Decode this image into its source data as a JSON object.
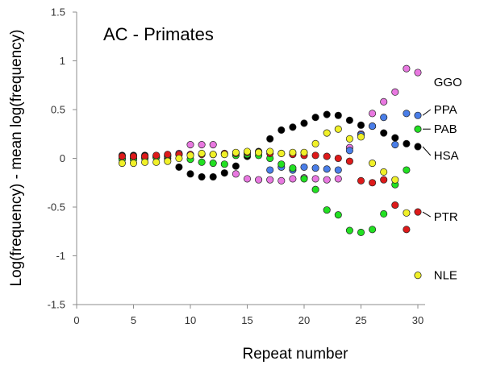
{
  "chart_data": {
    "type": "scatter",
    "title": "AC - Primates",
    "xlabel": "Repeat number",
    "ylabel": "Log(frequency) - mean log(frequency)",
    "xlim": [
      0,
      30
    ],
    "ylim": [
      -1.5,
      1.5
    ],
    "x_ticks": [
      "0",
      "5",
      "10",
      "15",
      "20",
      "25",
      "30"
    ],
    "y_ticks": [
      "1.5",
      "1",
      "0.5",
      "0",
      "-0.5",
      "-1",
      "-1.5"
    ],
    "grid": false,
    "series": [
      {
        "name": "HSA",
        "color": "#000000",
        "points": [
          [
            4,
            0.03
          ],
          [
            5,
            0.03
          ],
          [
            6,
            0.03
          ],
          [
            7,
            0.02
          ],
          [
            8,
            0.0
          ],
          [
            9,
            -0.09
          ],
          [
            10,
            -0.16
          ],
          [
            11,
            -0.19
          ],
          [
            12,
            -0.19
          ],
          [
            13,
            -0.15
          ],
          [
            14,
            -0.08
          ],
          [
            15,
            0.02
          ],
          [
            16,
            0.07
          ],
          [
            17,
            0.2
          ],
          [
            18,
            0.29
          ],
          [
            19,
            0.32
          ],
          [
            20,
            0.36
          ],
          [
            21,
            0.42
          ],
          [
            22,
            0.45
          ],
          [
            23,
            0.44
          ],
          [
            24,
            0.39
          ],
          [
            25,
            0.34
          ],
          [
            26,
            0.33
          ],
          [
            27,
            0.26
          ],
          [
            28,
            0.21
          ],
          [
            29,
            0.15
          ],
          [
            30,
            0.12
          ]
        ]
      },
      {
        "name": "GGO",
        "color": "#e878e0",
        "points": [
          [
            4,
            0.0
          ],
          [
            5,
            0.0
          ],
          [
            6,
            0.01
          ],
          [
            7,
            0.01
          ],
          [
            8,
            0.02
          ],
          [
            9,
            0.05
          ],
          [
            10,
            0.14
          ],
          [
            11,
            0.14
          ],
          [
            12,
            0.14
          ],
          [
            14,
            -0.16
          ],
          [
            15,
            -0.21
          ],
          [
            16,
            -0.22
          ],
          [
            17,
            -0.22
          ],
          [
            18,
            -0.23
          ],
          [
            19,
            -0.21
          ],
          [
            20,
            -0.2
          ],
          [
            21,
            -0.21
          ],
          [
            22,
            -0.22
          ],
          [
            23,
            -0.21
          ],
          [
            24,
            0.11
          ],
          [
            25,
            0.25
          ],
          [
            26,
            0.46
          ],
          [
            27,
            0.58
          ],
          [
            28,
            0.68
          ],
          [
            29,
            0.92
          ],
          [
            30,
            0.88
          ]
        ]
      },
      {
        "name": "PPA",
        "color": "#4a7ee8",
        "points": [
          [
            17,
            -0.12
          ],
          [
            18,
            -0.09
          ],
          [
            19,
            -0.12
          ],
          [
            20,
            -0.09
          ],
          [
            21,
            -0.1
          ],
          [
            22,
            -0.11
          ],
          [
            23,
            -0.12
          ],
          [
            24,
            0.08
          ],
          [
            25,
            0.24
          ],
          [
            26,
            0.33
          ],
          [
            27,
            0.42
          ],
          [
            28,
            0.14
          ],
          [
            29,
            0.46
          ],
          [
            30,
            0.44
          ]
        ]
      },
      {
        "name": "PAB",
        "color": "#22e022",
        "points": [
          [
            4,
            -0.01
          ],
          [
            5,
            -0.01
          ],
          [
            6,
            0.0
          ],
          [
            7,
            0.01
          ],
          [
            8,
            0.03
          ],
          [
            9,
            0.04
          ],
          [
            10,
            -0.01
          ],
          [
            11,
            -0.04
          ],
          [
            12,
            -0.05
          ],
          [
            13,
            -0.06
          ],
          [
            14,
            0.03
          ],
          [
            15,
            0.04
          ],
          [
            16,
            0.03
          ],
          [
            17,
            0.0
          ],
          [
            18,
            -0.06
          ],
          [
            19,
            -0.1
          ],
          [
            20,
            -0.21
          ],
          [
            21,
            -0.32
          ],
          [
            22,
            -0.53
          ],
          [
            23,
            -0.58
          ],
          [
            24,
            -0.74
          ],
          [
            25,
            -0.76
          ],
          [
            26,
            -0.73
          ],
          [
            27,
            -0.57
          ],
          [
            28,
            -0.27
          ],
          [
            29,
            -0.12
          ],
          [
            30,
            0.3
          ]
        ]
      },
      {
        "name": "PTR",
        "color": "#dd1a1a",
        "points": [
          [
            4,
            0.02
          ],
          [
            5,
            0.02
          ],
          [
            6,
            0.02
          ],
          [
            7,
            0.03
          ],
          [
            8,
            0.04
          ],
          [
            9,
            0.04
          ],
          [
            10,
            0.04
          ],
          [
            11,
            0.04
          ],
          [
            12,
            0.04
          ],
          [
            13,
            0.05
          ],
          [
            14,
            0.05
          ],
          [
            15,
            0.06
          ],
          [
            16,
            0.06
          ],
          [
            17,
            0.05
          ],
          [
            18,
            0.05
          ],
          [
            19,
            0.04
          ],
          [
            20,
            0.03
          ],
          [
            21,
            0.03
          ],
          [
            22,
            0.02
          ],
          [
            23,
            0.0
          ],
          [
            24,
            -0.03
          ],
          [
            25,
            -0.23
          ],
          [
            26,
            -0.25
          ],
          [
            27,
            -0.22
          ],
          [
            28,
            -0.48
          ],
          [
            29,
            -0.73
          ],
          [
            30,
            -0.55
          ]
        ]
      },
      {
        "name": "NLE",
        "color": "#f0f028",
        "points": [
          [
            4,
            -0.05
          ],
          [
            5,
            -0.05
          ],
          [
            6,
            -0.04
          ],
          [
            7,
            -0.04
          ],
          [
            8,
            -0.03
          ],
          [
            9,
            0.0
          ],
          [
            10,
            0.03
          ],
          [
            11,
            0.05
          ],
          [
            12,
            0.04
          ],
          [
            13,
            0.04
          ],
          [
            14,
            0.06
          ],
          [
            15,
            0.07
          ],
          [
            16,
            0.06
          ],
          [
            17,
            0.07
          ],
          [
            18,
            0.05
          ],
          [
            19,
            0.06
          ],
          [
            20,
            0.06
          ],
          [
            21,
            0.15
          ],
          [
            22,
            0.26
          ],
          [
            23,
            0.3
          ],
          [
            24,
            0.2
          ],
          [
            25,
            0.22
          ],
          [
            26,
            -0.05
          ],
          [
            27,
            -0.14
          ],
          [
            28,
            -0.22
          ],
          [
            29,
            -0.56
          ],
          [
            30,
            -1.2
          ]
        ]
      }
    ],
    "annotations": [
      {
        "text": "GGO",
        "series": "GGO",
        "x": 31.4,
        "y": 0.78,
        "leader": false
      },
      {
        "text": "PPA",
        "series": "PPA",
        "x": 31.4,
        "y": 0.5,
        "leader": true
      },
      {
        "text": "PAB",
        "series": "PAB",
        "x": 31.4,
        "y": 0.3,
        "leader": true
      },
      {
        "text": "HSA",
        "series": "HSA",
        "x": 31.4,
        "y": 0.03,
        "leader": true
      },
      {
        "text": "PTR",
        "series": "PTR",
        "x": 31.4,
        "y": -0.6,
        "leader": true
      },
      {
        "text": "NLE",
        "series": "NLE",
        "x": 31.4,
        "y": -1.2,
        "leader": false
      }
    ]
  }
}
